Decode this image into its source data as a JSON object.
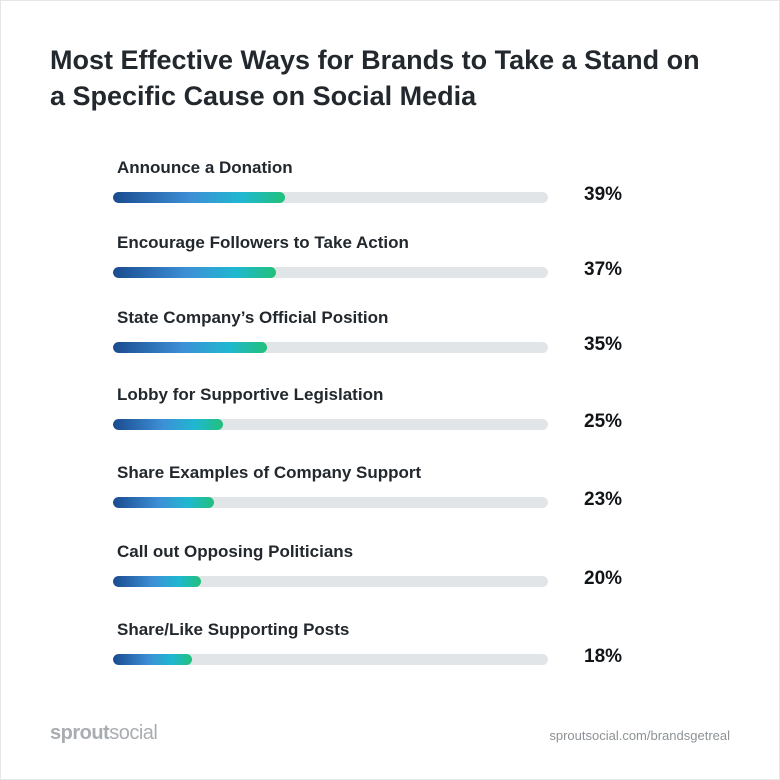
{
  "chart_data": {
    "type": "bar",
    "title": "Most Effective Ways for Brands to Take a Stand on a Specific Cause on Social Media",
    "categories": [
      "Announce a Donation",
      "Encourage Followers to Take Action",
      "State Company’s Official Position",
      "Lobby for Supportive Legislation",
      "Share Examples of Company Support",
      "Call out Opposing Politicians",
      "Share/Like Supporting Posts"
    ],
    "values": [
      39,
      37,
      35,
      25,
      23,
      20,
      18
    ],
    "value_labels": [
      "39%",
      "37%",
      "35%",
      "25%",
      "23%",
      "20%",
      "18%"
    ],
    "unit": "%",
    "orientation": "horizontal",
    "xlim": [
      0,
      100
    ],
    "grid": false
  },
  "footer": {
    "brand_bold": "sprout",
    "brand_light": "social",
    "source_url": "sproutsocial.com/brandsgetreal"
  },
  "colors": {
    "gradient_start": "#1a4b8f",
    "gradient_mid": "#3d8fd6",
    "gradient_teal": "#1fb8d0",
    "gradient_end": "#22c07a",
    "track": "#e2e5e7",
    "title_text": "#22282d"
  }
}
